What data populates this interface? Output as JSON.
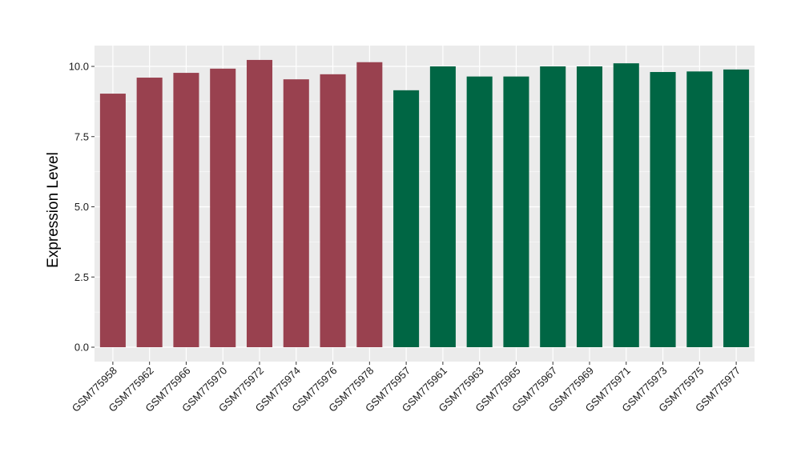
{
  "chart_data": {
    "type": "bar",
    "title": "",
    "xlabel": "",
    "ylabel": "Expression Level",
    "ylim": [
      0,
      10.8
    ],
    "yticks": [
      "0.0",
      "2.5",
      "5.0",
      "7.5",
      "10.0"
    ],
    "ytick_values": [
      0,
      2.5,
      5.0,
      7.5,
      10.0
    ],
    "grid": true,
    "legend": "none",
    "panel_background": "#ebebeb",
    "grid_color": "#ffffff",
    "categories": [
      "GSM775958",
      "GSM775962",
      "GSM775966",
      "GSM775970",
      "GSM775972",
      "GSM775974",
      "GSM775976",
      "GSM775978",
      "GSM775957",
      "GSM775961",
      "GSM775963",
      "GSM775965",
      "GSM775967",
      "GSM775969",
      "GSM775971",
      "GSM775973",
      "GSM775975",
      "GSM775977"
    ],
    "values": [
      9.03,
      9.6,
      9.77,
      9.92,
      10.23,
      9.54,
      9.72,
      10.15,
      9.15,
      10.0,
      9.64,
      9.64,
      10.0,
      10.0,
      10.11,
      9.8,
      9.82,
      9.89
    ],
    "colors": [
      "#99414f",
      "#99414f",
      "#99414f",
      "#99414f",
      "#99414f",
      "#99414f",
      "#99414f",
      "#99414f",
      "#006644",
      "#006644",
      "#006644",
      "#006644",
      "#006644",
      "#006644",
      "#006644",
      "#006644",
      "#006644",
      "#006644"
    ]
  }
}
